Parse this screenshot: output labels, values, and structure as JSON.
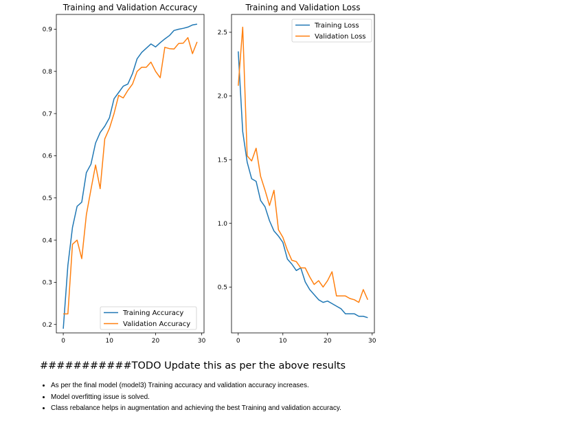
{
  "chart_data": [
    {
      "type": "line",
      "title": "Training and Validation Accuracy",
      "xlabel": "",
      "ylabel": "",
      "xlim": [
        -1.5,
        30.5
      ],
      "ylim": [
        0.18,
        0.935
      ],
      "xticks": [
        0,
        10,
        20,
        30
      ],
      "yticks": [
        0.2,
        0.3,
        0.4,
        0.5,
        0.6,
        0.7,
        0.8,
        0.9
      ],
      "legend_position": "lower-right",
      "series": [
        {
          "name": "Training Accuracy",
          "color": "#1f77b4",
          "x": [
            0,
            1,
            2,
            3,
            4,
            5,
            6,
            7,
            8,
            9,
            10,
            11,
            12,
            13,
            14,
            15,
            16,
            17,
            18,
            19,
            20,
            21,
            22,
            23,
            24,
            25,
            26,
            27,
            28,
            29
          ],
          "values": [
            0.19,
            0.34,
            0.43,
            0.48,
            0.49,
            0.56,
            0.58,
            0.63,
            0.655,
            0.67,
            0.69,
            0.735,
            0.75,
            0.765,
            0.77,
            0.795,
            0.83,
            0.845,
            0.855,
            0.865,
            0.858,
            0.868,
            0.877,
            0.885,
            0.897,
            0.9,
            0.902,
            0.905,
            0.91,
            0.912
          ]
        },
        {
          "name": "Validation Accuracy",
          "color": "#ff7f0e",
          "x": [
            0,
            1,
            2,
            3,
            4,
            5,
            6,
            7,
            8,
            9,
            10,
            11,
            12,
            13,
            14,
            15,
            16,
            17,
            18,
            19,
            20,
            21,
            22,
            23,
            24,
            25,
            26,
            27,
            28,
            29
          ],
          "values": [
            0.225,
            0.225,
            0.39,
            0.4,
            0.356,
            0.46,
            0.52,
            0.578,
            0.522,
            0.64,
            0.665,
            0.7,
            0.743,
            0.737,
            0.755,
            0.77,
            0.8,
            0.81,
            0.81,
            0.822,
            0.8,
            0.785,
            0.857,
            0.854,
            0.853,
            0.866,
            0.867,
            0.88,
            0.842,
            0.87
          ]
        }
      ]
    },
    {
      "type": "line",
      "title": "Training and Validation Loss",
      "xlabel": "",
      "ylabel": "",
      "xlim": [
        -1.5,
        30.5
      ],
      "ylim": [
        0.14,
        2.64
      ],
      "xticks": [
        0,
        10,
        20,
        30
      ],
      "yticks": [
        0.5,
        1.0,
        1.5,
        2.0,
        2.5
      ],
      "legend_position": "top-right",
      "series": [
        {
          "name": "Training Loss",
          "color": "#1f77b4",
          "x": [
            0,
            1,
            2,
            3,
            4,
            5,
            6,
            7,
            8,
            9,
            10,
            11,
            12,
            13,
            14,
            15,
            16,
            17,
            18,
            19,
            20,
            21,
            22,
            23,
            24,
            25,
            26,
            27,
            28,
            29
          ],
          "values": [
            2.35,
            1.72,
            1.48,
            1.35,
            1.33,
            1.18,
            1.13,
            1.02,
            0.94,
            0.9,
            0.85,
            0.72,
            0.68,
            0.63,
            0.65,
            0.54,
            0.48,
            0.44,
            0.4,
            0.38,
            0.39,
            0.37,
            0.35,
            0.33,
            0.29,
            0.29,
            0.29,
            0.27,
            0.27,
            0.26
          ]
        },
        {
          "name": "Validation Loss",
          "color": "#ff7f0e",
          "x": [
            0,
            1,
            2,
            3,
            4,
            5,
            6,
            7,
            8,
            9,
            10,
            11,
            12,
            13,
            14,
            15,
            16,
            17,
            18,
            19,
            20,
            21,
            22,
            23,
            24,
            25,
            26,
            27,
            28,
            29
          ],
          "values": [
            2.08,
            2.54,
            1.53,
            1.49,
            1.59,
            1.37,
            1.26,
            1.14,
            1.26,
            0.95,
            0.89,
            0.79,
            0.71,
            0.7,
            0.65,
            0.65,
            0.58,
            0.52,
            0.55,
            0.5,
            0.55,
            0.62,
            0.43,
            0.43,
            0.43,
            0.41,
            0.4,
            0.38,
            0.48,
            0.4
          ]
        }
      ]
    }
  ],
  "notes": {
    "heading": "###########TODO Update this as per the above results",
    "items": [
      "As per the final model (model3) Training accuracy and validation accuracy increases.",
      "Model overfitting issue is solved.",
      "Class rebalance helps in augmentation and achieving the best Training and validation accuracy."
    ]
  }
}
